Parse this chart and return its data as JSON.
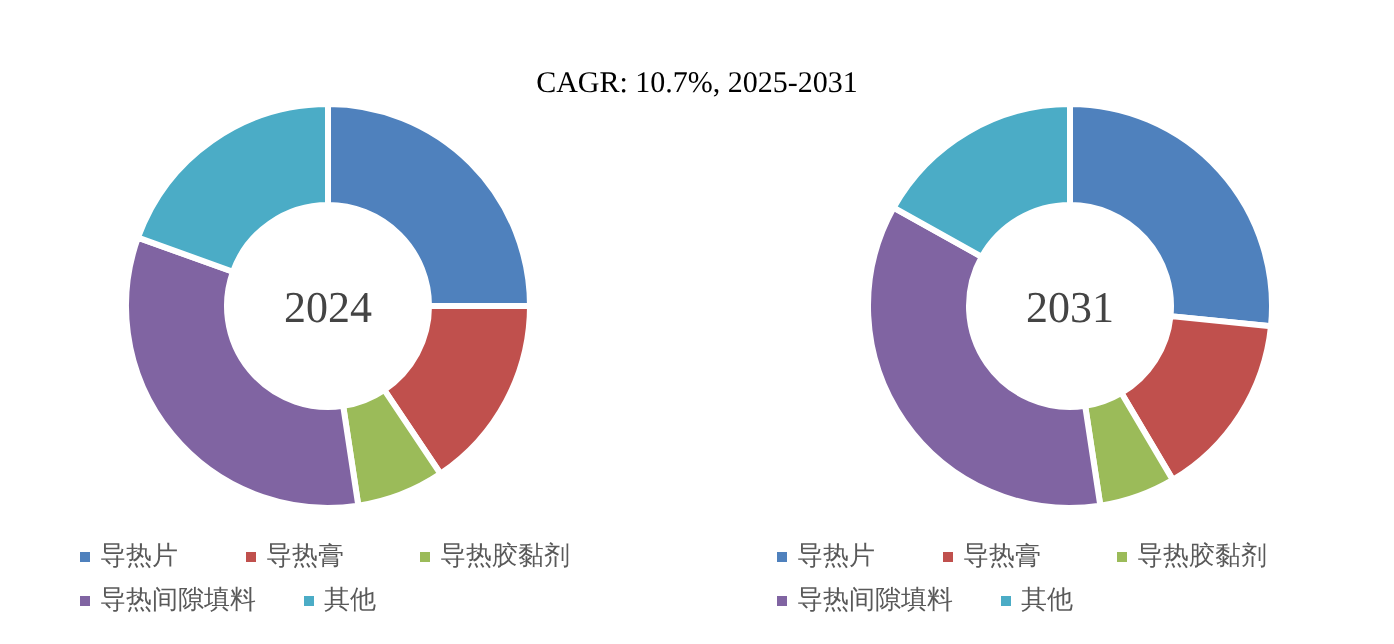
{
  "chart_data": [
    {
      "type": "donut",
      "title": "CAGR:  10.7%, 2025-2031",
      "annotations": [
        "2024"
      ],
      "legend": "bottom",
      "categories": [
        "导热片",
        "导热膏",
        "导热胶黏剂",
        "导热间隙填料",
        "其他"
      ],
      "values": [
        25,
        15.6,
        7,
        32.9,
        19.5
      ],
      "colors": [
        "#4f81bd",
        "#c0504d",
        "#9bbb59",
        "#8064a2",
        "#4bacc6"
      ]
    },
    {
      "type": "donut",
      "annotations": [
        "2031"
      ],
      "legend": "bottom",
      "categories": [
        "导热片",
        "导热膏",
        "导热胶黏剂",
        "导热间隙填料",
        "其他"
      ],
      "values": [
        26.6,
        14.9,
        6.1,
        35.5,
        16.9
      ],
      "colors": [
        "#4f81bd",
        "#c0504d",
        "#9bbb59",
        "#8064a2",
        "#4bacc6"
      ]
    }
  ]
}
